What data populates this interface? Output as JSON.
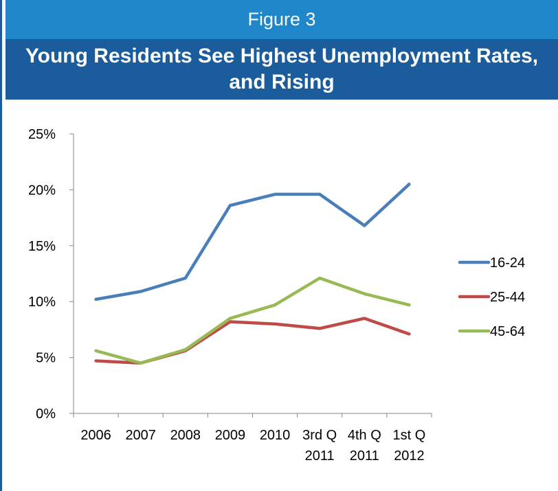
{
  "header": {
    "figure_label": "Figure 3",
    "title": "Young Residents See Highest Unemployment Rates, and Rising"
  },
  "colors": {
    "figure_bar": "#1f86c9",
    "title_bar": "#1a5c9c"
  },
  "chart_data": {
    "type": "line",
    "title": "Young Residents See Highest Unemployment Rates, and Rising",
    "xlabel": "",
    "ylabel": "",
    "categories": [
      [
        "2006"
      ],
      [
        "2007"
      ],
      [
        "2008"
      ],
      [
        "2009"
      ],
      [
        "2010"
      ],
      [
        "3rd Q",
        "2011"
      ],
      [
        "4th Q",
        "2011"
      ],
      [
        "1st Q",
        "2012"
      ]
    ],
    "y_ticks": [
      "0%",
      "5%",
      "10%",
      "15%",
      "20%",
      "25%"
    ],
    "ylim": [
      0,
      25
    ],
    "grid": false,
    "legend_position": "right",
    "series": [
      {
        "name": "16-24",
        "color": "#4a7ebb",
        "values": [
          10.2,
          10.9,
          12.1,
          18.6,
          19.6,
          19.6,
          16.8,
          20.5
        ]
      },
      {
        "name": "25-44",
        "color": "#be4b48",
        "values": [
          4.7,
          4.5,
          5.6,
          8.2,
          8.0,
          7.6,
          8.5,
          7.1
        ]
      },
      {
        "name": "45-64",
        "color": "#98b954",
        "values": [
          5.6,
          4.5,
          5.7,
          8.5,
          9.7,
          12.1,
          10.7,
          9.7
        ]
      }
    ]
  }
}
